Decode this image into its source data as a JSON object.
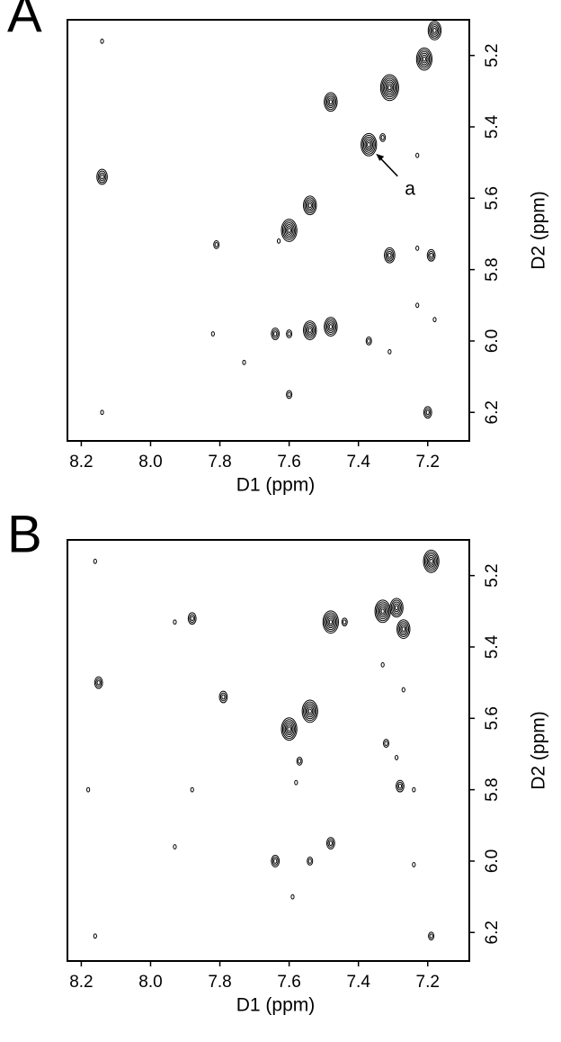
{
  "chart_data": [
    {
      "type": "contour",
      "panel_label": "A",
      "xlabel": "D1 (ppm)",
      "ylabel": "D2 (ppm)",
      "xlim": [
        8.24,
        7.08
      ],
      "ylim": [
        6.28,
        5.1
      ],
      "xticks": [
        8.2,
        {
          "value": 8,
          "label": "8.0"
        },
        7.8,
        7.6,
        7.4,
        7.2
      ],
      "yticks": [
        5.2,
        5.4,
        5.6,
        5.8,
        {
          "value": 6,
          "label": "6.0"
        },
        6.2
      ],
      "annotations": [
        {
          "text": "a"
        }
      ],
      "x": [
        8.14,
        8.14,
        7.48,
        7.37,
        7.33,
        7.23,
        7.31,
        7.21,
        7.18,
        7.54,
        7.6,
        7.63,
        7.81,
        7.31,
        7.23,
        7.19,
        7.23,
        7.18,
        7.64,
        7.6,
        7.54,
        7.48,
        7.37,
        7.82,
        7.73,
        7.31,
        7.6,
        7.2,
        8.14
      ],
      "y": [
        5.16,
        5.54,
        5.33,
        5.45,
        5.43,
        5.48,
        5.29,
        5.21,
        5.13,
        5.62,
        5.69,
        5.72,
        5.73,
        5.76,
        5.74,
        5.76,
        5.9,
        5.94,
        5.98,
        5.98,
        5.97,
        5.96,
        6.0,
        5.98,
        6.06,
        6.03,
        6.15,
        6.2,
        6.2
      ],
      "levels": [
        1,
        4,
        5,
        6,
        2,
        1,
        7,
        6,
        5,
        5,
        6,
        1,
        2,
        4,
        1,
        3,
        1,
        1,
        3,
        2,
        5,
        5,
        2,
        1,
        1,
        1,
        2,
        3,
        1
      ]
    },
    {
      "type": "contour",
      "panel_label": "B",
      "xlabel": "D1 (ppm)",
      "ylabel": "D2 (ppm)",
      "xlim": [
        8.24,
        7.08
      ],
      "ylim": [
        6.28,
        5.1
      ],
      "xticks": [
        8.2,
        {
          "value": 8,
          "label": "8.0"
        },
        7.8,
        7.6,
        7.4,
        7.2
      ],
      "yticks": [
        5.2,
        5.4,
        5.6,
        5.8,
        {
          "value": 6,
          "label": "6.0"
        },
        6.2
      ],
      "x": [
        8.16,
        7.93,
        7.88,
        7.48,
        7.44,
        7.33,
        7.29,
        7.27,
        7.19,
        7.33,
        8.15,
        7.79,
        7.27,
        7.54,
        7.6,
        7.57,
        7.32,
        7.29,
        8.18,
        7.88,
        7.58,
        7.28,
        7.24,
        7.93,
        7.48,
        7.64,
        7.54,
        7.24,
        7.59,
        8.16,
        7.19
      ],
      "y": [
        5.16,
        5.33,
        5.32,
        5.33,
        5.33,
        5.3,
        5.29,
        5.35,
        5.16,
        5.45,
        5.5,
        5.54,
        5.52,
        5.58,
        5.63,
        5.72,
        5.67,
        5.71,
        5.8,
        5.8,
        5.78,
        5.79,
        5.8,
        5.96,
        5.95,
        6.0,
        6.0,
        6.01,
        6.1,
        6.21,
        6.21
      ],
      "levels": [
        1,
        1,
        3,
        6,
        2,
        6,
        5,
        5,
        6,
        1,
        3,
        3,
        1,
        6,
        6,
        2,
        2,
        1,
        1,
        1,
        1,
        3,
        1,
        1,
        3,
        3,
        2,
        1,
        1,
        1,
        2
      ]
    }
  ]
}
